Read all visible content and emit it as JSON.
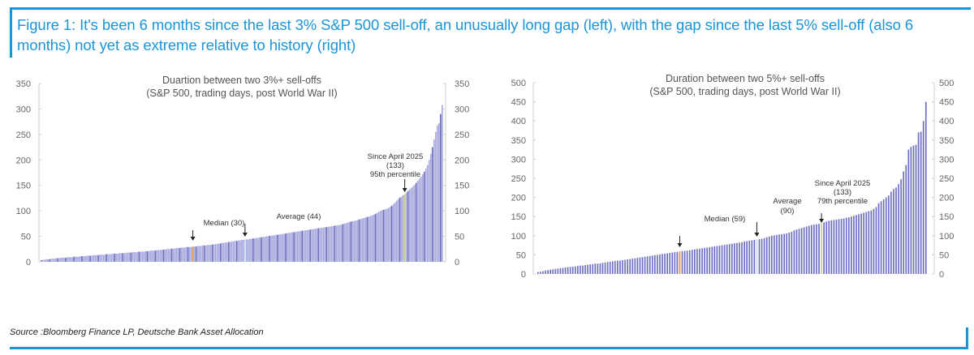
{
  "figure": {
    "title": "Figure 1: It's been 6 months since the last 3% S&P 500 sell-off, an unusually long gap (left), with the gap since the last 5% sell-off (also 6 months) not yet as extreme relative to history (right)",
    "source": "Source :Bloomberg Finance LP, Deutsche Bank Asset Allocation"
  },
  "colors": {
    "accent": "#1a95d8",
    "bar": "#6e6fc2",
    "bar_light": "#a9aade",
    "median": "#e8963c",
    "average": "#c8dcf0",
    "current": "#c9d08a"
  },
  "chart_data": [
    {
      "type": "bar",
      "title": "Duartion between two 3%+ sell-offs",
      "subtitle": "(S&P 500, trading days, post World War II)",
      "xlabel": "",
      "ylabel": "",
      "ylim": [
        0,
        350
      ],
      "yticks": [
        "0",
        "50",
        "100",
        "150",
        "200",
        "250",
        "300",
        "350"
      ],
      "grid": false,
      "sorted": "ascending",
      "values": [
        3,
        4,
        4,
        5,
        5,
        5,
        6,
        6,
        6,
        7,
        7,
        7,
        8,
        8,
        8,
        8,
        9,
        9,
        9,
        9,
        10,
        10,
        10,
        10,
        11,
        11,
        11,
        11,
        12,
        12,
        12,
        12,
        13,
        13,
        13,
        13,
        14,
        14,
        14,
        14,
        15,
        15,
        15,
        15,
        16,
        16,
        16,
        16,
        17,
        17,
        17,
        17,
        18,
        18,
        18,
        18,
        19,
        19,
        19,
        19,
        20,
        20,
        20,
        20,
        21,
        21,
        21,
        22,
        22,
        22,
        22,
        23,
        23,
        23,
        24,
        24,
        24,
        25,
        25,
        25,
        26,
        26,
        26,
        27,
        27,
        27,
        28,
        28,
        28,
        29,
        29,
        29,
        29,
        30,
        30,
        30,
        31,
        31,
        31,
        32,
        32,
        32,
        33,
        33,
        33,
        34,
        34,
        35,
        35,
        36,
        36,
        37,
        37,
        38,
        38,
        39,
        39,
        40,
        40,
        41,
        41,
        42,
        42,
        43,
        43,
        44,
        44,
        44,
        45,
        45,
        46,
        46,
        47,
        47,
        48,
        48,
        49,
        49,
        50,
        50,
        51,
        51,
        52,
        52,
        53,
        53,
        54,
        54,
        55,
        55,
        56,
        56,
        57,
        57,
        58,
        58,
        59,
        59,
        60,
        60,
        61,
        61,
        62,
        62,
        63,
        63,
        64,
        64,
        65,
        65,
        66,
        66,
        67,
        67,
        68,
        68,
        69,
        69,
        70,
        70,
        71,
        71,
        72,
        72,
        73,
        74,
        75,
        76,
        77,
        78,
        79,
        80,
        80,
        81,
        82,
        83,
        84,
        85,
        86,
        87,
        88,
        89,
        90,
        91,
        92,
        94,
        96,
        98,
        100,
        101,
        102,
        103,
        104,
        106,
        108,
        110,
        113,
        116,
        120,
        123,
        126,
        128,
        131,
        133,
        136,
        139,
        142,
        145,
        148,
        151,
        155,
        159,
        163,
        167,
        172,
        177,
        183,
        190,
        200,
        212,
        225,
        240,
        255,
        268,
        272,
        290,
        308
      ],
      "annotations": [
        {
          "label": "Median (30)",
          "value": 30,
          "bar_color": "median"
        },
        {
          "label": "Average (44)",
          "value": 44,
          "bar_color": "average"
        },
        {
          "label_lines": [
            "Since April 2025",
            "(133)",
            "95th percentile"
          ],
          "value": 133,
          "bar_color": "current"
        }
      ]
    },
    {
      "type": "bar",
      "title": "Duration between two 5%+ sell-offs",
      "subtitle": "(S&P 500, trading days, post World War II)",
      "xlabel": "",
      "ylabel": "",
      "ylim": [
        0,
        500
      ],
      "yticks": [
        "0",
        "50",
        "100",
        "150",
        "200",
        "250",
        "300",
        "350",
        "400",
        "450",
        "500"
      ],
      "grid": false,
      "sorted": "ascending",
      "values": [
        5,
        6,
        7,
        9,
        10,
        11,
        12,
        13,
        14,
        15,
        16,
        17,
        18,
        18,
        19,
        20,
        21,
        22,
        22,
        23,
        24,
        25,
        26,
        27,
        27,
        28,
        29,
        30,
        31,
        32,
        33,
        34,
        35,
        35,
        36,
        37,
        38,
        39,
        40,
        41,
        42,
        43,
        44,
        45,
        46,
        47,
        48,
        49,
        50,
        51,
        52,
        53,
        54,
        55,
        56,
        57,
        58,
        59,
        60,
        60,
        61,
        62,
        63,
        64,
        65,
        66,
        67,
        68,
        69,
        70,
        71,
        72,
        73,
        74,
        75,
        76,
        77,
        78,
        79,
        80,
        81,
        82,
        83,
        85,
        86,
        87,
        88,
        89,
        90,
        91,
        92,
        94,
        96,
        98,
        100,
        101,
        102,
        103,
        104,
        105,
        106,
        108,
        110,
        114,
        116,
        118,
        120,
        122,
        124,
        126,
        128,
        129,
        130,
        131,
        133,
        135,
        137,
        139,
        140,
        141,
        142,
        143,
        144,
        145,
        147,
        148,
        150,
        152,
        154,
        156,
        158,
        160,
        162,
        164,
        166,
        170,
        175,
        185,
        190,
        195,
        200,
        205,
        215,
        222,
        226,
        235,
        248,
        268,
        285,
        325,
        332,
        336,
        338,
        370,
        372,
        400,
        450
      ],
      "annotations": [
        {
          "label": "Median (59)",
          "value": 59,
          "bar_color": "median"
        },
        {
          "label_lines": [
            "Average",
            "(90)"
          ],
          "value": 90,
          "bar_color": "average"
        },
        {
          "label_lines": [
            "Since April 2025",
            "(133)",
            "79th percentile"
          ],
          "value": 133,
          "bar_color": "current"
        }
      ]
    }
  ]
}
